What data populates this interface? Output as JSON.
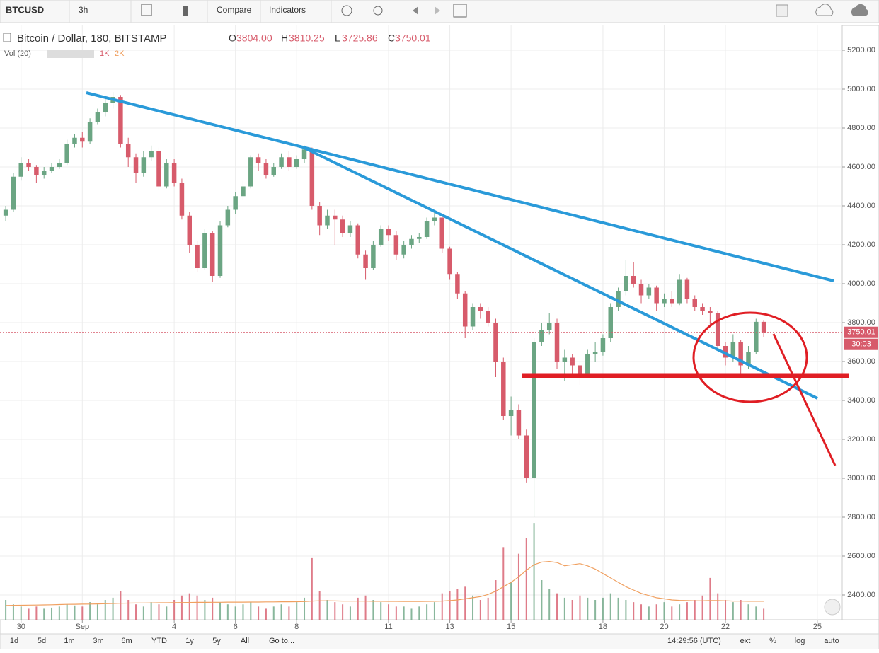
{
  "toolbar": {
    "symbol": "BTCUSD",
    "interval": "3h",
    "compare": "Compare",
    "indicators": "Indicators"
  },
  "legend": {
    "title": "Bitcoin / Dollar, 180, BITSTAMP",
    "ohlc": [
      {
        "key": "O",
        "value": "3804.00"
      },
      {
        "key": "H",
        "value": "3810.25"
      },
      {
        "key": "L",
        "value": "3725.86"
      },
      {
        "key": "C",
        "value": "3750.01"
      }
    ],
    "volume": "Vol (20)",
    "volume_scale": [
      "1K",
      "2K"
    ]
  },
  "chart_data": {
    "type": "candlestick",
    "up_color": "#6ba583",
    "down_color": "#d75b6b",
    "volume_ma_color": "#f0a060",
    "grid": true,
    "xlim": [
      -0.75,
      109.25
    ],
    "xticks": [
      {
        "value": 2,
        "label": "30"
      },
      {
        "value": 10,
        "label": "Sep"
      },
      {
        "value": 22,
        "label": "4"
      },
      {
        "value": 30,
        "label": "6"
      },
      {
        "value": 38,
        "label": "8"
      },
      {
        "value": 50,
        "label": "11"
      },
      {
        "value": 58,
        "label": "13"
      },
      {
        "value": 66,
        "label": "15"
      },
      {
        "value": 78,
        "label": "18"
      },
      {
        "value": 86,
        "label": "20"
      },
      {
        "value": 94,
        "label": "22"
      },
      {
        "value": 106,
        "label": "25"
      }
    ],
    "ylim": [
      2272.7,
      5327.3
    ],
    "yticks": [
      {
        "value": 2400,
        "label": "2400.00"
      },
      {
        "value": 2600,
        "label": "2600.00"
      },
      {
        "value": 2800,
        "label": "2800.00"
      },
      {
        "value": 3000,
        "label": "3000.00"
      },
      {
        "value": 3200,
        "label": "3200.00"
      },
      {
        "value": 3400,
        "label": "3400.00"
      },
      {
        "value": 3600,
        "label": "3600.00"
      },
      {
        "value": 3800,
        "label": "3800.00"
      },
      {
        "value": 4000,
        "label": "4000.00"
      },
      {
        "value": 4200,
        "label": "4200.00"
      },
      {
        "value": 4400,
        "label": "4400.00"
      },
      {
        "value": 4600,
        "label": "4600.00"
      },
      {
        "value": 4800,
        "label": "4800.00"
      },
      {
        "value": 5000,
        "label": "5000.00"
      },
      {
        "value": 5200,
        "label": "5200.00"
      }
    ],
    "open": [
      4350,
      4380,
      4550,
      4620,
      4600,
      4560,
      4580,
      4600,
      4620,
      4720,
      4750,
      4730,
      4830,
      4880,
      4930,
      4960,
      4720,
      4650,
      4570,
      4650,
      4680,
      4500,
      4620,
      4520,
      4350,
      4200,
      4080,
      4260,
      4040,
      4300,
      4380,
      4450,
      4500,
      4650,
      4620,
      4560,
      4600,
      4650,
      4600,
      4640,
      4690,
      4400,
      4300,
      4350,
      4330,
      4260,
      4300,
      4150,
      4080,
      4200,
      4280,
      4250,
      4150,
      4200,
      4230,
      4240,
      4320,
      4340,
      4180,
      4050,
      3950,
      3780,
      3880,
      3860,
      3800,
      3600,
      3320,
      3350,
      3220,
      3000,
      3700,
      3760,
      3800,
      3600,
      3620,
      3580,
      3540,
      3640,
      3650,
      3720,
      3880,
      3960,
      4040,
      4000,
      3940,
      3980,
      3900,
      3920,
      3900,
      4020,
      3920,
      3880,
      3860,
      3850,
      3680,
      3620,
      3700,
      3580,
      3650,
      3804
    ],
    "high": [
      4400,
      4570,
      4650,
      4640,
      4610,
      4600,
      4620,
      4640,
      4740,
      4770,
      4780,
      4850,
      4900,
      4950,
      4985,
      4970,
      4750,
      4670,
      4680,
      4710,
      4700,
      4640,
      4640,
      4540,
      4370,
      4220,
      4280,
      4270,
      4320,
      4400,
      4470,
      4530,
      4660,
      4670,
      4640,
      4620,
      4670,
      4680,
      4660,
      4710,
      4700,
      4420,
      4380,
      4380,
      4350,
      4320,
      4310,
      4170,
      4220,
      4300,
      4300,
      4270,
      4220,
      4250,
      4260,
      4340,
      4380,
      4350,
      4190,
      4060,
      3960,
      3900,
      3900,
      3880,
      3820,
      3620,
      3420,
      3380,
      3250,
      3720,
      3800,
      3850,
      3820,
      3660,
      3640,
      3600,
      3660,
      3700,
      3740,
      3900,
      3980,
      4120,
      4110,
      4020,
      4000,
      3990,
      3950,
      3960,
      4050,
      4030,
      3940,
      3900,
      3880,
      3860,
      3700,
      3740,
      3710,
      3680,
      3820,
      3810.25
    ],
    "low": [
      4320,
      4370,
      4530,
      4580,
      4520,
      4540,
      4570,
      4590,
      4610,
      4700,
      4700,
      4720,
      4820,
      4860,
      4900,
      4700,
      4600,
      4520,
      4550,
      4630,
      4480,
      4490,
      4500,
      4330,
      4160,
      4060,
      4070,
      4010,
      4030,
      4290,
      4360,
      4430,
      4490,
      4580,
      4540,
      4550,
      4590,
      4580,
      4590,
      4620,
      4380,
      4250,
      4280,
      4200,
      4240,
      4240,
      4130,
      4020,
      4070,
      4190,
      4220,
      4120,
      4130,
      4180,
      4210,
      4230,
      4300,
      4160,
      4020,
      3920,
      3720,
      3760,
      3820,
      3780,
      3520,
      3300,
      3220,
      3200,
      2975,
      2800,
      3680,
      3740,
      3560,
      3500,
      3540,
      3480,
      3520,
      3600,
      3630,
      3700,
      3860,
      3940,
      3980,
      3900,
      3920,
      3860,
      3880,
      3880,
      3890,
      3900,
      3860,
      3840,
      3780,
      3660,
      3580,
      3600,
      3540,
      3560,
      3640,
      3725.86
    ],
    "close": [
      4380,
      4550,
      4620,
      4600,
      4560,
      4580,
      4600,
      4620,
      4720,
      4750,
      4730,
      4830,
      4880,
      4930,
      4960,
      4720,
      4650,
      4570,
      4650,
      4680,
      4500,
      4620,
      4520,
      4350,
      4200,
      4080,
      4260,
      4040,
      4300,
      4380,
      4450,
      4500,
      4650,
      4620,
      4560,
      4600,
      4650,
      4600,
      4640,
      4690,
      4400,
      4300,
      4350,
      4330,
      4260,
      4300,
      4150,
      4080,
      4200,
      4280,
      4250,
      4150,
      4200,
      4230,
      4240,
      4320,
      4340,
      4180,
      4050,
      3950,
      3780,
      3880,
      3860,
      3800,
      3600,
      3320,
      3350,
      3220,
      3000,
      3700,
      3760,
      3800,
      3600,
      3620,
      3580,
      3540,
      3640,
      3650,
      3720,
      3880,
      3960,
      4040,
      4000,
      3940,
      3980,
      3900,
      3920,
      3900,
      4020,
      3920,
      3880,
      3860,
      3850,
      3680,
      3620,
      3700,
      3580,
      3650,
      3804,
      3750.01
    ],
    "volume_ylim": [
      0,
      4500
    ],
    "volume": [
      900,
      700,
      600,
      500,
      600,
      500,
      550,
      600,
      700,
      650,
      600,
      800,
      700,
      900,
      1000,
      1300,
      900,
      700,
      600,
      800,
      700,
      600,
      900,
      1100,
      1200,
      1100,
      900,
      1000,
      800,
      700,
      600,
      700,
      800,
      600,
      500,
      600,
      700,
      600,
      800,
      1000,
      2800,
      1300,
      900,
      800,
      700,
      600,
      1000,
      1100,
      900,
      800,
      700,
      600,
      600,
      500,
      600,
      700,
      800,
      1200,
      1300,
      1400,
      1500,
      1100,
      900,
      1000,
      1800,
      3300,
      1700,
      3000,
      3700,
      4400,
      1800,
      1400,
      1200,
      1000,
      900,
      1100,
      1000,
      900,
      1000,
      1200,
      1000,
      900,
      800,
      700,
      600,
      700,
      800,
      600,
      700,
      800,
      900,
      1100,
      1900,
      1200,
      900,
      800,
      900,
      700,
      600,
      500
    ],
    "volume_ma": [
      650,
      655,
      660,
      665,
      670,
      675,
      680,
      690,
      700,
      705,
      710,
      715,
      720,
      730,
      740,
      750,
      755,
      760,
      760,
      765,
      770,
      770,
      775,
      780,
      785,
      790,
      790,
      795,
      795,
      800,
      800,
      800,
      805,
      805,
      810,
      810,
      815,
      815,
      820,
      825,
      850,
      860,
      860,
      855,
      850,
      850,
      845,
      845,
      840,
      840,
      835,
      835,
      830,
      830,
      830,
      835,
      840,
      850,
      870,
      900,
      950,
      1000,
      1050,
      1150,
      1300,
      1500,
      1700,
      1950,
      2250,
      2500,
      2620,
      2650,
      2600,
      2450,
      2500,
      2550,
      2450,
      2300,
      2100,
      1900,
      1700,
      1500,
      1350,
      1200,
      1100,
      1000,
      950,
      900,
      880,
      870,
      860,
      860,
      870,
      870,
      860,
      850,
      850,
      840,
      840,
      840
    ]
  },
  "bottom_bar": {
    "ranges": [
      "1d",
      "5d",
      "1m",
      "3m",
      "6m",
      "YTD",
      "1y",
      "5y",
      "All"
    ],
    "goto": "Go to...",
    "time": "14:29:56 (UTC)",
    "options": [
      "ext",
      "%",
      "log",
      "auto"
    ],
    "countdown": "30:03"
  }
}
